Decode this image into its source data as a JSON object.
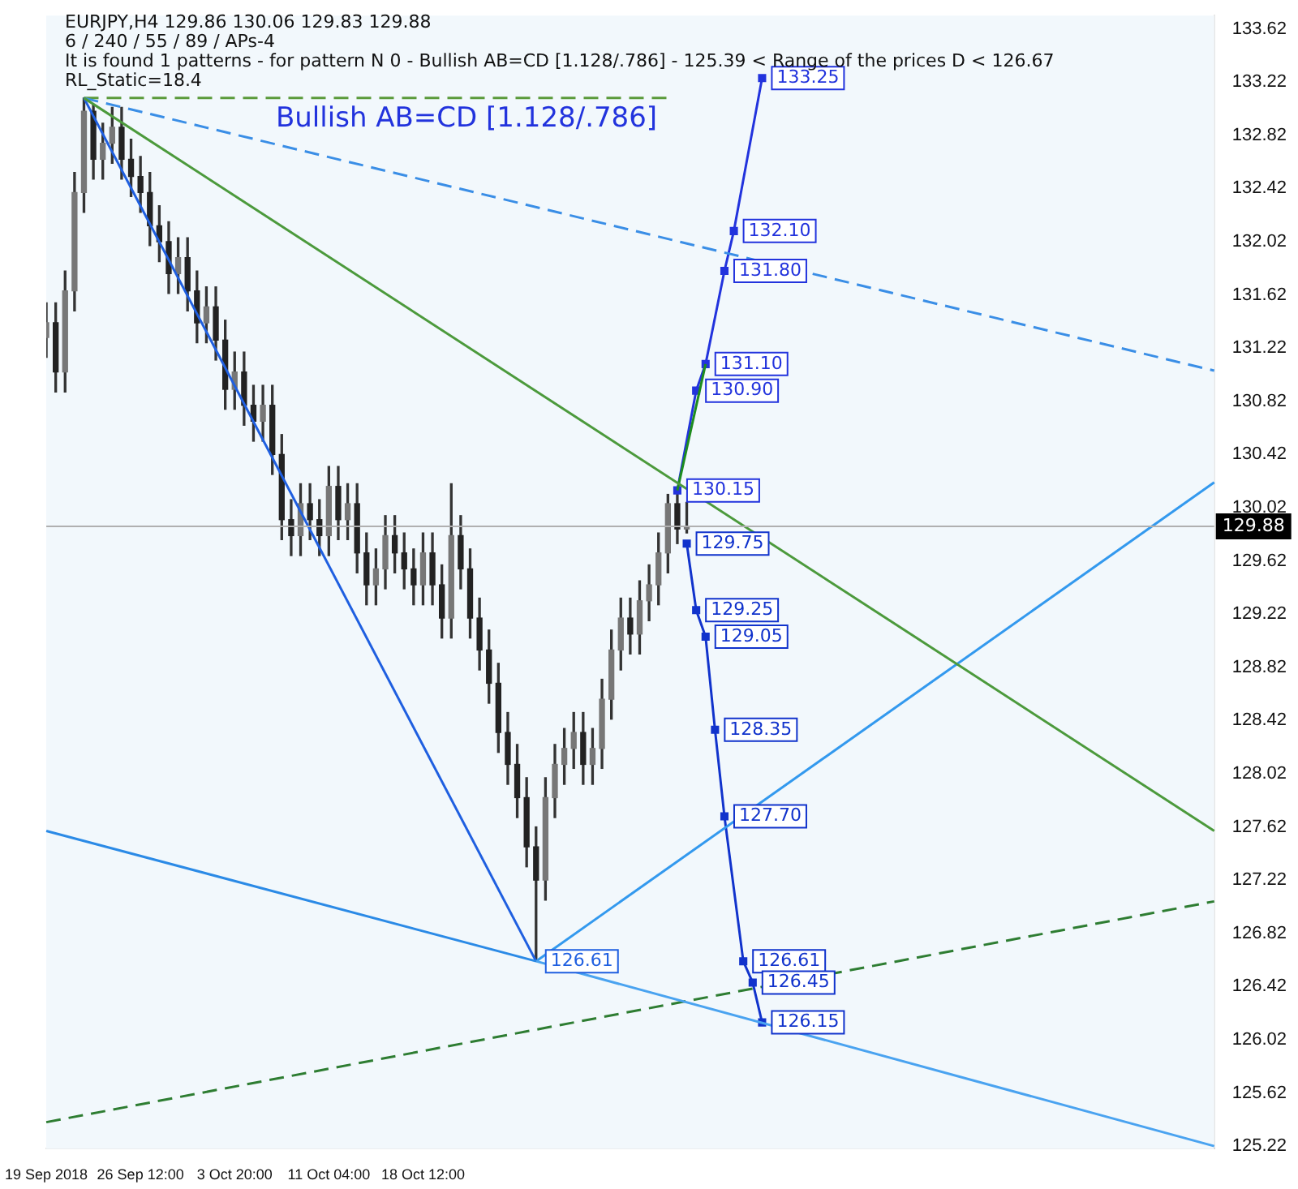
{
  "chart_data": {
    "type": "candlestick",
    "title": "EURJPY,H4  129.86 130.06 129.83 129.88",
    "annotations": [
      "6 / 240 / 55 / 89 / APs-4",
      "It is found 1 patterns  -  for pattern N 0 - Bullish AB=CD [1.128/.786] - 125.39 < Range of the prices D < 126.67",
      "RL_Static=18.4",
      "Bullish AB=CD [1.128/.786]"
    ],
    "categories": [
      "19 Sep 2018",
      null,
      null,
      null,
      null,
      null,
      null,
      null,
      null,
      null,
      "26 Sep 12:00",
      null,
      null,
      null,
      null,
      null,
      null,
      null,
      null,
      null,
      "3 Oct 20:00",
      null,
      null,
      null,
      null,
      null,
      null,
      null,
      null,
      null,
      "11 Oct 04:00",
      null,
      null,
      null,
      null,
      null,
      null,
      null,
      null,
      null,
      "18 Oct 12:00",
      null,
      null,
      null,
      null,
      null,
      null,
      null,
      null,
      null,
      null,
      null,
      null,
      null,
      null,
      null,
      null,
      null,
      null,
      null,
      null,
      null,
      null,
      null,
      null,
      null,
      null,
      null,
      null,
      null,
      null,
      null,
      null,
      null,
      null,
      null,
      null,
      null,
      null,
      null,
      null,
      null,
      null,
      null,
      null,
      null,
      null,
      null,
      null,
      null,
      null,
      null,
      null,
      null,
      null,
      null,
      null,
      null,
      null,
      null,
      null,
      null,
      null,
      null,
      null,
      null,
      null,
      null,
      null,
      null,
      null,
      null,
      null,
      null,
      null,
      null,
      null,
      null,
      null,
      null,
      null,
      null,
      null,
      null,
      null
    ],
    "ohlc": [
      [
        131.3,
        131.56,
        131.15,
        131.41
      ],
      [
        131.41,
        131.56,
        130.89,
        131.04
      ],
      [
        131.04,
        131.8,
        130.89,
        131.65
      ],
      [
        131.65,
        132.54,
        131.5,
        132.39
      ],
      [
        132.39,
        133.1,
        132.24,
        133.0
      ],
      [
        133.0,
        133.05,
        132.49,
        132.64
      ],
      [
        132.64,
        132.91,
        132.49,
        132.76
      ],
      [
        132.76,
        133.03,
        132.61,
        132.88
      ],
      [
        132.88,
        133.03,
        132.49,
        132.64
      ],
      [
        132.64,
        132.79,
        132.36,
        132.51
      ],
      [
        132.51,
        132.66,
        132.24,
        132.39
      ],
      [
        132.39,
        132.54,
        131.99,
        132.14
      ],
      [
        132.14,
        132.29,
        131.87,
        132.02
      ],
      [
        132.02,
        132.17,
        131.63,
        131.78
      ],
      [
        131.78,
        132.05,
        131.63,
        131.9
      ],
      [
        131.9,
        132.05,
        131.5,
        131.65
      ],
      [
        131.65,
        131.8,
        131.26,
        131.41
      ],
      [
        131.41,
        131.68,
        131.26,
        131.53
      ],
      [
        131.53,
        131.68,
        131.13,
        131.28
      ],
      [
        131.28,
        131.43,
        130.76,
        130.91
      ],
      [
        130.91,
        131.19,
        130.76,
        131.04
      ],
      [
        131.04,
        131.19,
        130.64,
        130.79
      ],
      [
        130.79,
        130.94,
        130.52,
        130.67
      ],
      [
        130.67,
        130.94,
        130.52,
        130.79
      ],
      [
        130.79,
        130.94,
        130.27,
        130.42
      ],
      [
        130.42,
        130.57,
        129.78,
        129.93
      ],
      [
        129.93,
        130.08,
        129.66,
        129.81
      ],
      [
        129.81,
        130.2,
        129.66,
        130.05
      ],
      [
        130.05,
        130.2,
        129.78,
        129.93
      ],
      [
        129.93,
        130.08,
        129.66,
        129.81
      ],
      [
        129.81,
        130.33,
        129.66,
        130.18
      ],
      [
        130.18,
        130.33,
        129.78,
        129.93
      ],
      [
        129.93,
        130.2,
        129.78,
        130.05
      ],
      [
        130.05,
        130.2,
        129.53,
        129.68
      ],
      [
        129.68,
        129.83,
        129.29,
        129.44
      ],
      [
        129.44,
        129.71,
        129.29,
        129.56
      ],
      [
        129.56,
        129.96,
        129.41,
        129.81
      ],
      [
        129.81,
        129.96,
        129.53,
        129.68
      ],
      [
        129.68,
        129.83,
        129.41,
        129.56
      ],
      [
        129.56,
        129.71,
        129.29,
        129.44
      ],
      [
        129.44,
        129.83,
        129.29,
        129.68
      ],
      [
        129.68,
        129.83,
        129.29,
        129.44
      ],
      [
        129.44,
        129.59,
        129.04,
        129.19
      ],
      [
        129.19,
        130.2,
        129.04,
        129.81
      ],
      [
        129.81,
        129.96,
        129.41,
        129.56
      ],
      [
        129.56,
        129.71,
        129.04,
        129.19
      ],
      [
        129.19,
        129.34,
        128.8,
        128.95
      ],
      [
        128.95,
        129.1,
        128.55,
        128.7
      ],
      [
        128.7,
        128.85,
        128.18,
        128.33
      ],
      [
        128.33,
        128.48,
        127.94,
        128.09
      ],
      [
        128.09,
        128.24,
        127.69,
        127.84
      ],
      [
        127.84,
        127.99,
        127.32,
        127.47
      ],
      [
        127.47,
        127.62,
        126.61,
        127.22
      ],
      [
        127.22,
        127.99,
        127.07,
        127.84
      ],
      [
        127.84,
        128.24,
        127.69,
        128.09
      ],
      [
        128.09,
        128.36,
        127.94,
        128.21
      ],
      [
        128.21,
        128.48,
        128.06,
        128.33
      ],
      [
        128.33,
        128.48,
        127.94,
        128.09
      ],
      [
        128.09,
        128.36,
        127.94,
        128.21
      ],
      [
        128.21,
        128.73,
        128.06,
        128.58
      ],
      [
        128.58,
        129.1,
        128.43,
        128.95
      ],
      [
        128.95,
        129.34,
        128.8,
        129.19
      ],
      [
        129.19,
        129.34,
        128.92,
        129.07
      ],
      [
        129.07,
        129.47,
        128.92,
        129.32
      ],
      [
        129.32,
        129.59,
        129.17,
        129.44
      ],
      [
        129.44,
        129.83,
        129.29,
        129.68
      ],
      [
        129.68,
        130.12,
        129.53,
        130.05
      ],
      [
        130.05,
        130.15,
        129.75,
        129.86
      ],
      [
        129.86,
        130.06,
        129.83,
        129.88
      ],
      null,
      null,
      null,
      null,
      null,
      null,
      null,
      null,
      null,
      null,
      null,
      null,
      null,
      null,
      null,
      null,
      null,
      null,
      null,
      null,
      null,
      null,
      null,
      null,
      null,
      null,
      null,
      null,
      null,
      null,
      null,
      null,
      null,
      null,
      null,
      null,
      null,
      null,
      null,
      null,
      null,
      null,
      null,
      null,
      null,
      null,
      null,
      null,
      null,
      null,
      null,
      null,
      null,
      null,
      null,
      null
    ],
    "series": [
      {
        "type": "line",
        "color": "#2b8ae6",
        "values": [
          127.59,
          null,
          null,
          null,
          null,
          null,
          null,
          null,
          null,
          null,
          null,
          null,
          null,
          null,
          null,
          null,
          null,
          null,
          null,
          null,
          null,
          null,
          null,
          null,
          null,
          null,
          null,
          null,
          null,
          null,
          null,
          null,
          null,
          null,
          null,
          null,
          null,
          null,
          null,
          null,
          null,
          null,
          null,
          null,
          null,
          null,
          null,
          null,
          null,
          null,
          null,
          null,
          126.61,
          null,
          null,
          null,
          null,
          null,
          null,
          null,
          null,
          null,
          null,
          null,
          null,
          null,
          null,
          null,
          null,
          null,
          null,
          null,
          null,
          null,
          null,
          null,
          null,
          null,
          null,
          null,
          null,
          null,
          null,
          null,
          null,
          null,
          null,
          null,
          null,
          null,
          null,
          null,
          null,
          null,
          null,
          null,
          null,
          null,
          null,
          null,
          null,
          null,
          null,
          null,
          null,
          null,
          null,
          null,
          null,
          null,
          null,
          null,
          null,
          null,
          null,
          null,
          null,
          null,
          null,
          null,
          null,
          null,
          null,
          null,
          null
        ]
      },
      {
        "type": "line",
        "color": "#4aa3f0",
        "values": [
          null,
          null,
          null,
          null,
          null,
          null,
          null,
          null,
          null,
          null,
          null,
          null,
          null,
          null,
          null,
          null,
          null,
          null,
          null,
          null,
          null,
          null,
          null,
          null,
          null,
          null,
          null,
          null,
          null,
          null,
          null,
          null,
          null,
          null,
          null,
          null,
          null,
          null,
          null,
          null,
          null,
          null,
          null,
          null,
          null,
          null,
          null,
          null,
          null,
          null,
          null,
          null,
          126.61,
          null,
          null,
          null,
          null,
          null,
          null,
          null,
          null,
          null,
          null,
          null,
          null,
          null,
          null,
          null,
          null,
          null,
          null,
          null,
          null,
          null,
          null,
          null,
          null,
          null,
          null,
          null,
          null,
          null,
          null,
          null,
          null,
          null,
          null,
          null,
          null,
          null,
          null,
          null,
          null,
          null,
          null,
          null,
          null,
          null,
          null,
          null,
          null,
          null,
          null,
          null,
          null,
          null,
          null,
          null,
          null,
          null,
          null,
          null,
          null,
          null,
          null,
          null,
          null,
          null,
          null,
          null,
          null,
          null,
          null,
          null,
          125.22
        ]
      },
      {
        "type": "line",
        "color": "#4c9a3c",
        "values": [
          null,
          null,
          null,
          null,
          133.1,
          null,
          null,
          null,
          null,
          null,
          null,
          null,
          null,
          null,
          null,
          null,
          null,
          null,
          null,
          null,
          null,
          null,
          null,
          null,
          null,
          null,
          null,
          null,
          null,
          null,
          null,
          null,
          null,
          null,
          null,
          null,
          null,
          null,
          null,
          null,
          null,
          null,
          null,
          null,
          null,
          null,
          null,
          null,
          null,
          null,
          null,
          null,
          null,
          null,
          null,
          null,
          null,
          null,
          null,
          null,
          null,
          null,
          null,
          null,
          null,
          null,
          null,
          null,
          null,
          null,
          null,
          null,
          null,
          null,
          null,
          null,
          null,
          null,
          null,
          null,
          null,
          null,
          null,
          null,
          null,
          null,
          null,
          null,
          null,
          null,
          null,
          null,
          null,
          null,
          null,
          null,
          null,
          null,
          null,
          null,
          null,
          null,
          null,
          null,
          null,
          null,
          null,
          null,
          null,
          null,
          null,
          null,
          null,
          null,
          null,
          null,
          null,
          null,
          null,
          null,
          null,
          null,
          null,
          null,
          127.59
        ]
      },
      {
        "type": "line",
        "color": "#1f5fe0",
        "values": [
          null,
          null,
          null,
          null,
          133.1,
          null,
          null,
          null,
          null,
          null,
          null,
          null,
          null,
          null,
          null,
          null,
          null,
          null,
          null,
          null,
          null,
          null,
          null,
          null,
          null,
          null,
          null,
          null,
          null,
          null,
          null,
          null,
          null,
          null,
          null,
          null,
          null,
          null,
          null,
          null,
          null,
          null,
          null,
          null,
          null,
          null,
          null,
          null,
          null,
          null,
          null,
          null,
          126.61,
          null,
          null,
          null,
          null,
          null,
          null,
          null,
          null,
          null,
          null,
          null,
          null,
          null,
          null,
          null,
          null,
          null,
          null,
          null,
          null,
          null,
          null,
          null,
          null,
          null,
          null,
          null,
          null,
          null,
          null,
          null,
          null,
          null,
          null,
          null,
          null,
          null,
          null,
          null,
          null,
          null,
          null,
          null,
          null,
          null,
          null,
          null,
          null,
          null,
          null,
          null,
          null,
          null,
          null,
          null,
          null,
          null,
          null,
          null,
          null,
          null,
          null,
          null,
          null,
          null,
          null,
          null,
          null,
          null,
          null,
          null,
          null
        ],
        "value_labels": [
          null,
          null,
          null,
          null,
          null,
          null,
          null,
          null,
          null,
          null,
          null,
          null,
          null,
          null,
          null,
          null,
          null,
          null,
          null,
          null,
          null,
          null,
          null,
          null,
          null,
          null,
          null,
          null,
          null,
          null,
          null,
          null,
          null,
          null,
          null,
          null,
          null,
          null,
          null,
          null,
          null,
          null,
          null,
          null,
          null,
          null,
          null,
          null,
          null,
          null,
          null,
          null,
          "126.61",
          null,
          null,
          null,
          null,
          null,
          null,
          null,
          null,
          null,
          null,
          null,
          null,
          null,
          null,
          null,
          null,
          null,
          null,
          null,
          null,
          null,
          null,
          null,
          null,
          null,
          null,
          null,
          null,
          null,
          null,
          null,
          null,
          null,
          null,
          null,
          null,
          null,
          null,
          null,
          null,
          null,
          null,
          null,
          null,
          null,
          null,
          null,
          null,
          null,
          null,
          null,
          null,
          null,
          null,
          null,
          null,
          null,
          null,
          null,
          null,
          null,
          null,
          null,
          null,
          null,
          null,
          null,
          null,
          null,
          null,
          null,
          null
        ]
      },
      {
        "type": "line",
        "color": "#3399ee",
        "values": [
          null,
          null,
          null,
          null,
          null,
          null,
          null,
          null,
          null,
          null,
          null,
          null,
          null,
          null,
          null,
          null,
          null,
          null,
          null,
          null,
          null,
          null,
          null,
          null,
          null,
          null,
          null,
          null,
          null,
          null,
          null,
          null,
          null,
          null,
          null,
          null,
          null,
          null,
          null,
          null,
          null,
          null,
          null,
          null,
          null,
          null,
          null,
          null,
          null,
          null,
          null,
          null,
          126.61,
          null,
          null,
          null,
          null,
          null,
          null,
          null,
          null,
          null,
          null,
          null,
          null,
          null,
          null,
          null,
          null,
          null,
          null,
          null,
          null,
          null,
          null,
          null,
          null,
          null,
          null,
          null,
          null,
          null,
          null,
          null,
          null,
          null,
          null,
          null,
          null,
          null,
          null,
          null,
          null,
          null,
          null,
          null,
          null,
          null,
          null,
          null,
          null,
          null,
          null,
          null,
          null,
          null,
          null,
          null,
          null,
          null,
          null,
          null,
          null,
          null,
          null,
          null,
          null,
          null,
          null,
          null,
          null,
          null,
          null,
          null,
          130.21
        ]
      },
      {
        "type": "line",
        "color": "#3a8ee6",
        "line_style": "dashed",
        "values": [
          null,
          null,
          null,
          null,
          133.1,
          null,
          null,
          null,
          null,
          null,
          null,
          null,
          null,
          null,
          null,
          null,
          null,
          null,
          null,
          null,
          null,
          null,
          null,
          null,
          null,
          null,
          null,
          null,
          null,
          null,
          null,
          null,
          null,
          null,
          null,
          null,
          null,
          null,
          null,
          null,
          null,
          null,
          null,
          null,
          null,
          null,
          null,
          null,
          null,
          null,
          null,
          null,
          null,
          null,
          null,
          null,
          null,
          null,
          null,
          null,
          null,
          null,
          null,
          null,
          null,
          null,
          null,
          null,
          null,
          null,
          null,
          null,
          null,
          null,
          null,
          null,
          null,
          null,
          null,
          null,
          null,
          null,
          null,
          null,
          null,
          null,
          null,
          null,
          null,
          null,
          null,
          null,
          null,
          null,
          null,
          null,
          null,
          null,
          null,
          null,
          null,
          null,
          null,
          null,
          null,
          null,
          null,
          null,
          null,
          null,
          null,
          null,
          null,
          null,
          null,
          null,
          null,
          null,
          null,
          null,
          null,
          null,
          null,
          null,
          131.05
        ]
      },
      {
        "type": "line",
        "color": "#2e7d32",
        "line_style": "dashed",
        "values": [
          125.4,
          null,
          null,
          null,
          null,
          null,
          null,
          null,
          null,
          null,
          null,
          null,
          null,
          null,
          null,
          null,
          null,
          null,
          null,
          null,
          null,
          null,
          null,
          null,
          null,
          null,
          null,
          null,
          null,
          null,
          null,
          null,
          null,
          null,
          null,
          null,
          null,
          null,
          null,
          null,
          null,
          null,
          null,
          null,
          null,
          null,
          null,
          null,
          null,
          null,
          null,
          null,
          null,
          null,
          null,
          null,
          null,
          null,
          null,
          null,
          null,
          null,
          null,
          null,
          null,
          null,
          null,
          null,
          null,
          null,
          null,
          null,
          null,
          null,
          null,
          null,
          null,
          null,
          null,
          null,
          null,
          null,
          null,
          null,
          null,
          null,
          null,
          null,
          null,
          null,
          null,
          null,
          null,
          null,
          null,
          null,
          null,
          null,
          null,
          null,
          null,
          null,
          null,
          null,
          null,
          null,
          null,
          null,
          null,
          null,
          null,
          null,
          null,
          null,
          null,
          null,
          null,
          null,
          null,
          null,
          null,
          null,
          null,
          null,
          127.06
        ]
      },
      {
        "type": "line",
        "color": "#5a9a3a",
        "line_style": "dashed",
        "values": [
          null,
          null,
          null,
          null,
          133.1,
          null,
          null,
          null,
          null,
          null,
          null,
          null,
          null,
          null,
          null,
          null,
          null,
          null,
          null,
          null,
          null,
          null,
          null,
          null,
          null,
          null,
          null,
          null,
          null,
          null,
          null,
          null,
          null,
          null,
          null,
          null,
          null,
          null,
          null,
          null,
          null,
          null,
          null,
          null,
          null,
          null,
          null,
          null,
          null,
          null,
          null,
          null,
          null,
          null,
          null,
          null,
          null,
          null,
          null,
          null,
          null,
          null,
          null,
          null,
          null,
          null,
          133.1,
          null,
          null,
          null,
          null,
          null,
          null,
          null,
          null,
          null,
          null,
          null,
          null,
          null,
          null,
          null,
          null,
          null,
          null,
          null,
          null,
          null,
          null,
          null,
          null,
          null,
          null,
          null,
          null,
          null,
          null,
          null,
          null,
          null,
          null,
          null,
          null,
          null,
          null,
          null,
          null,
          null,
          null,
          null,
          null,
          null,
          null,
          null,
          null,
          null,
          null,
          null,
          null,
          null,
          null,
          null,
          null,
          null,
          null
        ]
      },
      {
        "type": "line",
        "color": "#1e8c1e",
        "values": [
          null,
          null,
          null,
          null,
          null,
          null,
          null,
          null,
          null,
          null,
          null,
          null,
          null,
          null,
          null,
          null,
          null,
          null,
          null,
          null,
          null,
          null,
          null,
          null,
          null,
          null,
          null,
          null,
          null,
          null,
          null,
          null,
          null,
          null,
          null,
          null,
          null,
          null,
          null,
          null,
          null,
          null,
          null,
          null,
          null,
          null,
          null,
          null,
          null,
          null,
          null,
          null,
          null,
          null,
          null,
          null,
          null,
          null,
          null,
          null,
          null,
          null,
          null,
          null,
          null,
          null,
          null,
          130.15,
          null,
          null,
          131.1,
          null,
          null,
          null,
          null,
          null,
          null,
          null,
          null,
          null,
          null,
          null,
          null,
          null,
          null,
          null,
          null,
          null,
          null,
          null,
          null,
          null,
          null,
          null,
          null,
          null,
          null,
          null,
          null,
          null,
          null,
          null,
          null,
          null,
          null,
          null,
          null,
          null,
          null,
          null,
          null,
          null,
          null,
          null,
          null,
          null,
          null,
          null,
          null,
          null,
          null,
          null,
          null,
          null,
          null
        ]
      },
      {
        "type": "line",
        "color": "#2233dd",
        "marker": "square",
        "values": [
          null,
          null,
          null,
          null,
          null,
          null,
          null,
          null,
          null,
          null,
          null,
          null,
          null,
          null,
          null,
          null,
          null,
          null,
          null,
          null,
          null,
          null,
          null,
          null,
          null,
          null,
          null,
          null,
          null,
          null,
          null,
          null,
          null,
          null,
          null,
          null,
          null,
          null,
          null,
          null,
          null,
          null,
          null,
          null,
          null,
          null,
          null,
          null,
          null,
          null,
          null,
          null,
          null,
          null,
          null,
          null,
          null,
          null,
          null,
          null,
          null,
          null,
          null,
          null,
          null,
          null,
          null,
          130.15,
          null,
          130.9,
          131.1,
          null,
          131.8,
          132.1,
          null,
          null,
          133.25,
          null,
          null,
          null,
          null,
          null,
          null,
          null,
          null,
          null,
          null,
          null,
          null,
          null,
          null,
          null,
          null,
          null,
          null,
          null,
          null,
          null,
          null,
          null,
          null,
          null,
          null,
          null,
          null,
          null,
          null,
          null,
          null,
          null,
          null,
          null,
          null,
          null,
          null,
          null,
          null,
          null,
          null,
          null,
          null,
          null,
          null,
          null,
          null
        ],
        "value_labels": [
          null,
          null,
          null,
          null,
          null,
          null,
          null,
          null,
          null,
          null,
          null,
          null,
          null,
          null,
          null,
          null,
          null,
          null,
          null,
          null,
          null,
          null,
          null,
          null,
          null,
          null,
          null,
          null,
          null,
          null,
          null,
          null,
          null,
          null,
          null,
          null,
          null,
          null,
          null,
          null,
          null,
          null,
          null,
          null,
          null,
          null,
          null,
          null,
          null,
          null,
          null,
          null,
          null,
          null,
          null,
          null,
          null,
          null,
          null,
          null,
          null,
          null,
          null,
          null,
          null,
          null,
          null,
          "130.15",
          null,
          "130.90",
          "131.10",
          null,
          "131.80",
          "132.10",
          null,
          null,
          "133.25",
          null,
          null,
          null,
          null,
          null,
          null,
          null,
          null,
          null,
          null,
          null,
          null,
          null,
          null,
          null,
          null,
          null,
          null,
          null,
          null,
          null,
          null,
          null,
          null,
          null,
          null,
          null,
          null,
          null,
          null,
          null,
          null,
          null,
          null,
          null,
          null,
          null,
          null,
          null,
          null,
          null,
          null,
          null,
          null,
          null,
          null,
          null,
          null
        ]
      },
      {
        "type": "line",
        "color": "#1133cc",
        "marker": "square",
        "values": [
          null,
          null,
          null,
          null,
          null,
          null,
          null,
          null,
          null,
          null,
          null,
          null,
          null,
          null,
          null,
          null,
          null,
          null,
          null,
          null,
          null,
          null,
          null,
          null,
          null,
          null,
          null,
          null,
          null,
          null,
          null,
          null,
          null,
          null,
          null,
          null,
          null,
          null,
          null,
          null,
          null,
          null,
          null,
          null,
          null,
          null,
          null,
          null,
          null,
          null,
          null,
          null,
          null,
          null,
          null,
          null,
          null,
          null,
          null,
          null,
          null,
          null,
          null,
          null,
          null,
          null,
          null,
          null,
          129.75,
          129.25,
          129.05,
          128.35,
          127.7,
          null,
          126.61,
          126.45,
          126.15,
          null,
          null,
          null,
          null,
          null,
          null,
          null,
          null,
          null,
          null,
          null,
          null,
          null,
          null,
          null,
          null,
          null,
          null,
          null,
          null,
          null,
          null,
          null,
          null,
          null,
          null,
          null,
          null,
          null,
          null,
          null,
          null,
          null,
          null,
          null,
          null,
          null,
          null,
          null,
          null,
          null,
          null,
          null,
          null,
          null,
          null,
          null,
          null
        ],
        "value_labels": [
          null,
          null,
          null,
          null,
          null,
          null,
          null,
          null,
          null,
          null,
          null,
          null,
          null,
          null,
          null,
          null,
          null,
          null,
          null,
          null,
          null,
          null,
          null,
          null,
          null,
          null,
          null,
          null,
          null,
          null,
          null,
          null,
          null,
          null,
          null,
          null,
          null,
          null,
          null,
          null,
          null,
          null,
          null,
          null,
          null,
          null,
          null,
          null,
          null,
          null,
          null,
          null,
          null,
          null,
          null,
          null,
          null,
          null,
          null,
          null,
          null,
          null,
          null,
          null,
          null,
          null,
          null,
          null,
          "129.75",
          "129.25",
          "129.05",
          "128.35",
          "127.70",
          null,
          "126.61",
          "126.45",
          "126.15",
          null,
          null,
          null,
          null,
          null,
          null,
          null,
          null,
          null,
          null,
          null,
          null,
          null,
          null,
          null,
          null,
          null,
          null,
          null,
          null,
          null,
          null,
          null,
          null,
          null,
          null,
          null,
          null,
          null,
          null,
          null,
          null,
          null,
          null,
          null,
          null,
          null,
          null,
          null,
          null,
          null,
          null,
          null,
          null,
          null,
          null,
          null,
          null
        ]
      }
    ],
    "ylim": [
      125.2,
      133.72
    ],
    "yticks": [
      125.22,
      125.62,
      126.02,
      126.42,
      126.82,
      127.22,
      127.62,
      128.02,
      128.42,
      128.82,
      129.22,
      129.62,
      130.02,
      130.42,
      130.82,
      131.22,
      131.62,
      132.02,
      132.42,
      132.82,
      133.22,
      133.62
    ],
    "ref_lines": [
      {
        "axis": "y",
        "value": 129.88,
        "label": "129.88",
        "color": "#b0b0b0"
      }
    ],
    "grid": false,
    "legend": false,
    "marker": "none"
  }
}
